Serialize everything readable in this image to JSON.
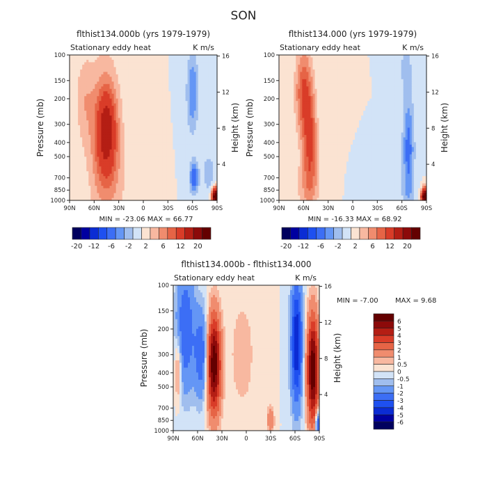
{
  "season": "SON",
  "chart_data": [
    {
      "type": "heatmap",
      "title": "flthist134.000b (yrs 1979-1979)",
      "subtitle_left": "Stationary eddy heat",
      "subtitle_right": "K m/s",
      "xlabel": "",
      "ylabel": "Pressure (mb)",
      "ylabel_right": "Height (km)",
      "x_ticks": [
        "90N",
        "60N",
        "30N",
        "0",
        "30S",
        "60S",
        "90S"
      ],
      "x_values": [
        90,
        60,
        30,
        0,
        -30,
        -60,
        -90
      ],
      "y_ticks": [
        "100",
        "150",
        "200",
        "300",
        "400",
        "500",
        "700",
        "850",
        "1000"
      ],
      "y_values": [
        100,
        150,
        200,
        300,
        400,
        500,
        700,
        850,
        1000
      ],
      "y2_ticks": [
        "16",
        "12",
        "8",
        "4"
      ],
      "y2_values": [
        16,
        12,
        8,
        4
      ],
      "ylim": [
        1000,
        100
      ],
      "xlim": [
        90,
        -90
      ],
      "stats": "MIN = -23.06   MAX =  66.77",
      "min": -23.06,
      "max": 66.77,
      "features": [
        {
          "lat": 45,
          "p": 330,
          "value": 10,
          "sx": 8,
          "sy": 0.45
        },
        {
          "lat": 47,
          "p": 400,
          "value": 6,
          "sx": 14,
          "sy": 0.9
        },
        {
          "lat": 72,
          "p": 200,
          "value": 3,
          "sx": 8,
          "sy": 0.5
        },
        {
          "lat": 30,
          "p": 700,
          "value": 1,
          "sx": 15,
          "sy": 0.4
        },
        {
          "lat": -60,
          "p": 180,
          "value": -6,
          "sx": 5,
          "sy": 0.45
        },
        {
          "lat": -62,
          "p": 700,
          "value": -8,
          "sx": 4,
          "sy": 0.18
        },
        {
          "lat": -88,
          "p": 950,
          "value": 25,
          "sx": 3,
          "sy": 0.1
        },
        {
          "lat": -80,
          "p": 650,
          "value": -4,
          "sx": 5,
          "sy": 0.2
        }
      ]
    },
    {
      "type": "heatmap",
      "title": "flthist134.000 (yrs 1979-1979)",
      "subtitle_left": "Stationary eddy heat",
      "subtitle_right": "K m/s",
      "xlabel": "",
      "ylabel": "Pressure (mb)",
      "ylabel_right": "Height (km)",
      "x_ticks": [
        "90N",
        "60N",
        "30N",
        "0",
        "30S",
        "60S",
        "90S"
      ],
      "x_values": [
        90,
        60,
        30,
        0,
        -30,
        -60,
        -90
      ],
      "y_ticks": [
        "100",
        "150",
        "200",
        "300",
        "400",
        "500",
        "700",
        "850",
        "1000"
      ],
      "y_values": [
        100,
        150,
        200,
        300,
        400,
        500,
        700,
        850,
        1000
      ],
      "y2_ticks": [
        "16",
        "12",
        "8",
        "4"
      ],
      "y2_values": [
        16,
        12,
        8,
        4
      ],
      "ylim": [
        1000,
        100
      ],
      "xlim": [
        90,
        -90
      ],
      "stats": "MIN = -16.33   MAX =  68.92",
      "min": -16.33,
      "max": 68.92,
      "features": [
        {
          "lat": 60,
          "p": 180,
          "value": 8,
          "sx": 7,
          "sy": 0.5
        },
        {
          "lat": 52,
          "p": 400,
          "value": 8,
          "sx": 6,
          "sy": 0.55
        },
        {
          "lat": 55,
          "p": 800,
          "value": 3,
          "sx": 12,
          "sy": 0.3
        },
        {
          "lat": -65,
          "p": 120,
          "value": -3,
          "sx": 5,
          "sy": 0.3
        },
        {
          "lat": -68,
          "p": 450,
          "value": -7,
          "sx": 5,
          "sy": 0.6
        },
        {
          "lat": -88,
          "p": 950,
          "value": 25,
          "sx": 3,
          "sy": 0.1
        },
        {
          "lat": -55,
          "p": 900,
          "value": -1,
          "sx": 20,
          "sy": 0.2
        }
      ]
    },
    {
      "type": "heatmap",
      "title": "flthist134.000b - flthist134.000",
      "subtitle_left": "Stationary eddy heat",
      "subtitle_right": "K m/s",
      "xlabel": "",
      "ylabel": "Pressure (mb)",
      "ylabel_right": "Height (km)",
      "x_ticks": [
        "90N",
        "60N",
        "30N",
        "0",
        "30S",
        "60S",
        "90S"
      ],
      "x_values": [
        90,
        60,
        30,
        0,
        -30,
        -60,
        -90
      ],
      "y_ticks": [
        "100",
        "150",
        "200",
        "300",
        "400",
        "500",
        "700",
        "850",
        "1000"
      ],
      "y_values": [
        100,
        150,
        200,
        300,
        400,
        500,
        700,
        850,
        1000
      ],
      "y2_ticks": [
        "16",
        "12",
        "8",
        "4"
      ],
      "y2_values": [
        16,
        12,
        8,
        4
      ],
      "ylim": [
        1000,
        100
      ],
      "xlim": [
        90,
        -90
      ],
      "stats_min": "MIN =   -7.00",
      "stats_max": "MAX =    9.68",
      "min": -7.0,
      "max": 9.68,
      "features": [
        {
          "lat": 75,
          "p": 200,
          "value": -3,
          "sx": 8,
          "sy": 0.7
        },
        {
          "lat": 55,
          "p": 300,
          "value": -3,
          "sx": 6,
          "sy": 0.5
        },
        {
          "lat": 40,
          "p": 350,
          "value": 7,
          "sx": 6,
          "sy": 0.55
        },
        {
          "lat": 84,
          "p": 380,
          "value": 2,
          "sx": 3,
          "sy": 0.35
        },
        {
          "lat": 5,
          "p": 300,
          "value": 0.8,
          "sx": 12,
          "sy": 0.7
        },
        {
          "lat": -30,
          "p": 850,
          "value": 2,
          "sx": 3,
          "sy": 0.15
        },
        {
          "lat": -62,
          "p": 250,
          "value": -5,
          "sx": 5,
          "sy": 0.7
        },
        {
          "lat": -82,
          "p": 380,
          "value": 7,
          "sx": 5,
          "sy": 0.6
        },
        {
          "lat": -88,
          "p": 900,
          "value": -4,
          "sx": 2,
          "sy": 0.15
        }
      ],
      "legend_labels": [
        "6",
        "5",
        "4",
        "3",
        "2",
        "1",
        "0.5",
        "0",
        "-0.5",
        "-1",
        "-2",
        "-3",
        "-4",
        "-5",
        "-6"
      ],
      "legend_levels": [
        -6,
        -5,
        -4,
        -3,
        -2,
        -1,
        -0.5,
        0,
        0.5,
        1,
        2,
        3,
        4,
        5,
        6
      ]
    }
  ],
  "colorbar_top": {
    "labels": [
      "-20",
      "-12",
      "-6",
      "-2",
      "2",
      "6",
      "12",
      "20"
    ],
    "levels": [
      -20,
      -16,
      -12,
      -8,
      -6,
      -4,
      -2,
      0,
      2,
      4,
      6,
      8,
      12,
      16,
      20
    ]
  },
  "palette": [
    "#00005e",
    "#0000a0",
    "#0b2cd4",
    "#1e50f0",
    "#3c6ef5",
    "#6496f5",
    "#a0beee",
    "#d2e3f7",
    "#fbe3d2",
    "#f8b8a0",
    "#f08c6e",
    "#e66446",
    "#d93c28",
    "#b41e14",
    "#8c0a0a",
    "#640000"
  ]
}
